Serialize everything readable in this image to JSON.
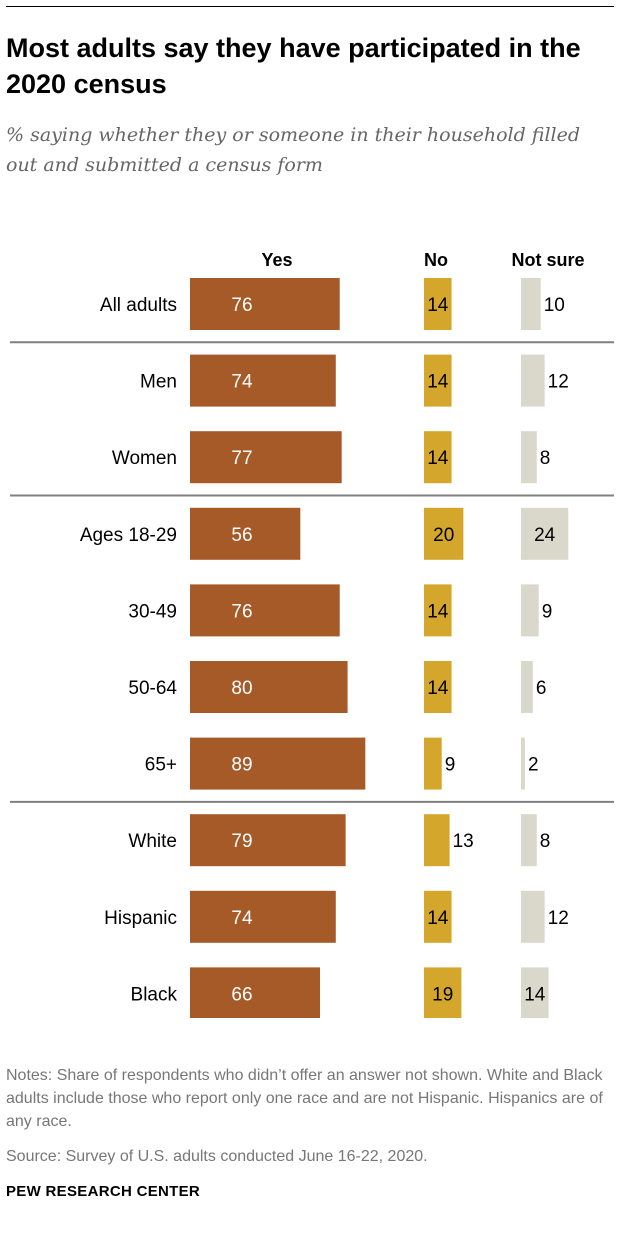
{
  "title": "Most adults say they have participated in the 2020 census",
  "subtitle": "% saying whether they or someone in their household filled out and submitted a census form",
  "notes": "Notes: Share of respondents who didn’t offer an answer not shown. White and Black adults include those who report only one race and are not Hispanic. Hispanics are of any race.",
  "source": "Source: Survey of U.S. adults conducted June 16-22, 2020.",
  "brand": "PEW RESEARCH CENTER",
  "colors": {
    "yes": "#A65A27",
    "no": "#D4A72C",
    "not_sure": "#DAD7CB",
    "divider": "#808080"
  },
  "chart_data": {
    "type": "bar",
    "orientation": "horizontal",
    "layout": "grouped columns",
    "categories": [
      "All adults",
      "Men",
      "Women",
      "Ages 18-29",
      "30-49",
      "50-64",
      "65+",
      "White",
      "Hispanic",
      "Black"
    ],
    "groups_after": [
      0,
      2,
      6
    ],
    "series": [
      {
        "name": "Yes",
        "values": [
          76,
          74,
          77,
          56,
          76,
          80,
          89,
          79,
          74,
          66
        ]
      },
      {
        "name": "No",
        "values": [
          14,
          14,
          14,
          20,
          14,
          14,
          9,
          13,
          14,
          19
        ]
      },
      {
        "name": "Not sure",
        "values": [
          10,
          12,
          8,
          24,
          9,
          6,
          2,
          8,
          12,
          14
        ]
      }
    ]
  }
}
